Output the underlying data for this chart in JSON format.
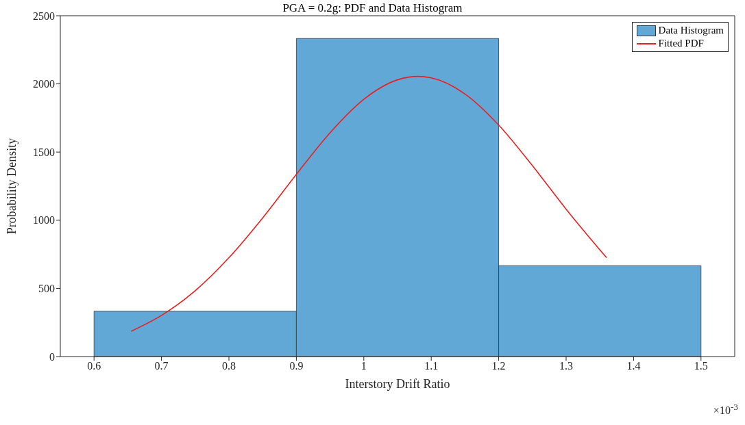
{
  "chart_data": {
    "type": "histogram",
    "title": "PGA = 0.2g: PDF and Data Histogram",
    "xlabel": "Interstory Drift Ratio",
    "ylabel": "Probability Density",
    "annotations": [
      "×10$^{-3}$"
    ],
    "xlim": [
      0.55,
      1.55
    ],
    "xticks": [
      0.6,
      0.7,
      0.8,
      0.9,
      1,
      1.1,
      1.2,
      1.3,
      1.4,
      1.5
    ],
    "ylim": [
      0,
      2500
    ],
    "yticks": [
      0,
      500,
      1000,
      1500,
      2000,
      2500
    ],
    "legend": "top right",
    "series": [
      {
        "name": "Data Histogram",
        "color": "#62a8d6",
        "bins": [
          0.6,
          0.9,
          1.2,
          1.5
        ],
        "values": [
          333,
          2333,
          667
        ]
      },
      {
        "name": "Fitted PDF",
        "type": "line",
        "color": "#e8201f",
        "marker": "none",
        "line_style": "solid",
        "x": [
          0.655,
          0.7,
          0.75,
          0.8,
          0.85,
          0.9,
          0.95,
          1.0,
          1.05,
          1.08,
          1.1,
          1.15,
          1.2,
          1.25,
          1.3,
          1.36
        ],
        "values": [
          186,
          302,
          483,
          725,
          1017,
          1337,
          1642,
          1887,
          2030,
          2055,
          2044,
          1926,
          1698,
          1400,
          1081,
          725
        ]
      }
    ]
  }
}
